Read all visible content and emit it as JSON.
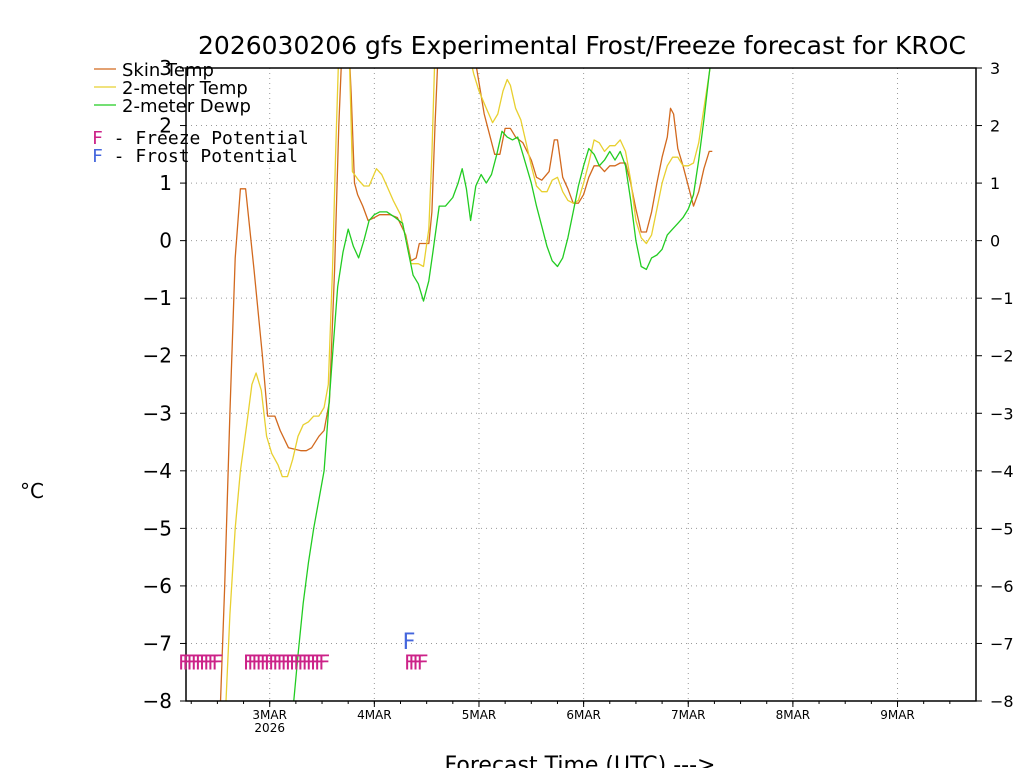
{
  "chart_data": {
    "type": "line",
    "title": "2026030206 gfs Experimental Frost/Freeze forecast for KROC",
    "xlabel": "Forecast Time (UTC) --->",
    "ylabel": "°C",
    "ylim": [
      -8,
      3
    ],
    "yticks": [
      -8,
      -7,
      -6,
      -5,
      -4,
      -3,
      -2,
      -1,
      0,
      1,
      2,
      3
    ],
    "xlim_days": [
      2.2,
      9.75
    ],
    "x_ticks": [
      {
        "day": 3,
        "label": "3MAR",
        "sublabel": "2026"
      },
      {
        "day": 4,
        "label": "4MAR",
        "sublabel": ""
      },
      {
        "day": 5,
        "label": "5MAR",
        "sublabel": ""
      },
      {
        "day": 6,
        "label": "6MAR",
        "sublabel": ""
      },
      {
        "day": 7,
        "label": "7MAR",
        "sublabel": ""
      },
      {
        "day": 8,
        "label": "8MAR",
        "sublabel": ""
      },
      {
        "day": 9,
        "label": "9MAR",
        "sublabel": ""
      }
    ],
    "grid": true,
    "series": [
      {
        "name": "Skin Temp",
        "color": "#d2691e",
        "points": [
          [
            2.52,
            -8.5
          ],
          [
            2.57,
            -6
          ],
          [
            2.62,
            -3
          ],
          [
            2.67,
            -0.3
          ],
          [
            2.72,
            0.9
          ],
          [
            2.77,
            0.9
          ],
          [
            2.85,
            -0.5
          ],
          [
            2.93,
            -2
          ],
          [
            2.98,
            -3.05
          ],
          [
            3.05,
            -3.05
          ],
          [
            3.1,
            -3.3
          ],
          [
            3.18,
            -3.6
          ],
          [
            3.3,
            -3.65
          ],
          [
            3.35,
            -3.65
          ],
          [
            3.4,
            -3.6
          ],
          [
            3.47,
            -3.4
          ],
          [
            3.52,
            -3.3
          ],
          [
            3.57,
            -2.8
          ],
          [
            3.62,
            -0.5
          ],
          [
            3.66,
            2
          ],
          [
            3.69,
            3.3
          ],
          [
            3.76,
            3.3
          ],
          [
            3.78,
            2.5
          ],
          [
            3.81,
            1
          ],
          [
            3.84,
            0.8
          ],
          [
            3.89,
            0.6
          ],
          [
            3.94,
            0.35
          ],
          [
            4.0,
            0.4
          ],
          [
            4.05,
            0.45
          ],
          [
            4.15,
            0.45
          ],
          [
            4.22,
            0.4
          ],
          [
            4.3,
            0.1
          ],
          [
            4.35,
            -0.35
          ],
          [
            4.4,
            -0.3
          ],
          [
            4.43,
            -0.05
          ],
          [
            4.52,
            -0.05
          ],
          [
            4.55,
            0.5
          ],
          [
            4.58,
            2
          ],
          [
            4.61,
            3.3
          ],
          [
            4.95,
            3.3
          ],
          [
            5.05,
            2.2
          ],
          [
            5.15,
            1.5
          ],
          [
            5.2,
            1.5
          ],
          [
            5.25,
            1.95
          ],
          [
            5.3,
            1.95
          ],
          [
            5.35,
            1.8
          ],
          [
            5.42,
            1.7
          ],
          [
            5.5,
            1.4
          ],
          [
            5.55,
            1.1
          ],
          [
            5.6,
            1.05
          ],
          [
            5.67,
            1.2
          ],
          [
            5.72,
            1.75
          ],
          [
            5.75,
            1.75
          ],
          [
            5.8,
            1.1
          ],
          [
            5.85,
            0.9
          ],
          [
            5.9,
            0.65
          ],
          [
            5.95,
            0.65
          ],
          [
            6.0,
            0.8
          ],
          [
            6.05,
            1.1
          ],
          [
            6.1,
            1.3
          ],
          [
            6.15,
            1.3
          ],
          [
            6.2,
            1.2
          ],
          [
            6.25,
            1.3
          ],
          [
            6.3,
            1.3
          ],
          [
            6.35,
            1.35
          ],
          [
            6.4,
            1.35
          ],
          [
            6.45,
            1.0
          ],
          [
            6.5,
            0.55
          ],
          [
            6.55,
            0.15
          ],
          [
            6.6,
            0.15
          ],
          [
            6.65,
            0.5
          ],
          [
            6.7,
            1.0
          ],
          [
            6.75,
            1.45
          ],
          [
            6.8,
            1.8
          ],
          [
            6.83,
            2.3
          ],
          [
            6.86,
            2.2
          ],
          [
            6.9,
            1.6
          ],
          [
            6.95,
            1.3
          ],
          [
            7.0,
            0.95
          ],
          [
            7.05,
            0.6
          ],
          [
            7.1,
            0.85
          ],
          [
            7.15,
            1.25
          ],
          [
            7.2,
            1.55
          ],
          [
            7.23,
            1.55
          ]
        ]
      },
      {
        "name": "2-meter Temp",
        "color": "#e8d030",
        "points": [
          [
            2.57,
            -8.5
          ],
          [
            2.62,
            -6.5
          ],
          [
            2.67,
            -5
          ],
          [
            2.72,
            -4
          ],
          [
            2.78,
            -3.2
          ],
          [
            2.83,
            -2.5
          ],
          [
            2.87,
            -2.3
          ],
          [
            2.92,
            -2.6
          ],
          [
            2.97,
            -3.4
          ],
          [
            3.02,
            -3.7
          ],
          [
            3.08,
            -3.9
          ],
          [
            3.12,
            -4.1
          ],
          [
            3.17,
            -4.1
          ],
          [
            3.22,
            -3.8
          ],
          [
            3.27,
            -3.4
          ],
          [
            3.32,
            -3.2
          ],
          [
            3.37,
            -3.15
          ],
          [
            3.42,
            -3.05
          ],
          [
            3.47,
            -3.05
          ],
          [
            3.52,
            -2.9
          ],
          [
            3.56,
            -2.5
          ],
          [
            3.6,
            -0.5
          ],
          [
            3.63,
            1.5
          ],
          [
            3.66,
            3.3
          ],
          [
            3.76,
            3.3
          ],
          [
            3.79,
            1.2
          ],
          [
            3.85,
            1.05
          ],
          [
            3.9,
            0.95
          ],
          [
            3.95,
            0.95
          ],
          [
            4.02,
            1.25
          ],
          [
            4.07,
            1.15
          ],
          [
            4.12,
            0.95
          ],
          [
            4.18,
            0.7
          ],
          [
            4.25,
            0.45
          ],
          [
            4.3,
            0.05
          ],
          [
            4.35,
            -0.4
          ],
          [
            4.42,
            -0.4
          ],
          [
            4.47,
            -0.45
          ],
          [
            4.52,
            0.2
          ],
          [
            4.55,
            1.5
          ],
          [
            4.58,
            3.3
          ],
          [
            4.9,
            3.3
          ],
          [
            4.95,
            2.9
          ],
          [
            5.0,
            2.6
          ],
          [
            5.07,
            2.3
          ],
          [
            5.13,
            2.05
          ],
          [
            5.18,
            2.2
          ],
          [
            5.23,
            2.6
          ],
          [
            5.27,
            2.8
          ],
          [
            5.3,
            2.7
          ],
          [
            5.35,
            2.3
          ],
          [
            5.4,
            2.1
          ],
          [
            5.45,
            1.7
          ],
          [
            5.5,
            1.3
          ],
          [
            5.55,
            0.95
          ],
          [
            5.6,
            0.85
          ],
          [
            5.65,
            0.85
          ],
          [
            5.7,
            1.05
          ],
          [
            5.75,
            1.1
          ],
          [
            5.8,
            0.85
          ],
          [
            5.85,
            0.7
          ],
          [
            5.9,
            0.65
          ],
          [
            5.95,
            0.7
          ],
          [
            6.0,
            1.0
          ],
          [
            6.05,
            1.35
          ],
          [
            6.1,
            1.75
          ],
          [
            6.15,
            1.7
          ],
          [
            6.2,
            1.55
          ],
          [
            6.25,
            1.65
          ],
          [
            6.3,
            1.65
          ],
          [
            6.35,
            1.75
          ],
          [
            6.4,
            1.55
          ],
          [
            6.45,
            1.05
          ],
          [
            6.5,
            0.35
          ],
          [
            6.55,
            0.05
          ],
          [
            6.6,
            -0.05
          ],
          [
            6.65,
            0.1
          ],
          [
            6.7,
            0.55
          ],
          [
            6.75,
            1.0
          ],
          [
            6.8,
            1.3
          ],
          [
            6.85,
            1.45
          ],
          [
            6.9,
            1.45
          ],
          [
            6.95,
            1.3
          ],
          [
            7.0,
            1.3
          ],
          [
            7.05,
            1.35
          ],
          [
            7.1,
            1.7
          ],
          [
            7.15,
            2.3
          ],
          [
            7.2,
            2.9
          ],
          [
            7.23,
            3.3
          ]
        ]
      },
      {
        "name": "2-meter Dewp",
        "color": "#22cc22",
        "points": [
          [
            3.22,
            -8.2
          ],
          [
            3.27,
            -7.2
          ],
          [
            3.32,
            -6.3
          ],
          [
            3.37,
            -5.6
          ],
          [
            3.42,
            -5.0
          ],
          [
            3.47,
            -4.5
          ],
          [
            3.52,
            -4.0
          ],
          [
            3.56,
            -3.0
          ],
          [
            3.6,
            -2.0
          ],
          [
            3.65,
            -0.8
          ],
          [
            3.7,
            -0.2
          ],
          [
            3.75,
            0.2
          ],
          [
            3.8,
            -0.1
          ],
          [
            3.85,
            -0.3
          ],
          [
            3.9,
            0.0
          ],
          [
            3.95,
            0.35
          ],
          [
            4.0,
            0.45
          ],
          [
            4.05,
            0.5
          ],
          [
            4.12,
            0.5
          ],
          [
            4.2,
            0.4
          ],
          [
            4.27,
            0.3
          ],
          [
            4.32,
            -0.15
          ],
          [
            4.37,
            -0.6
          ],
          [
            4.42,
            -0.75
          ],
          [
            4.47,
            -1.05
          ],
          [
            4.52,
            -0.7
          ],
          [
            4.56,
            -0.2
          ],
          [
            4.62,
            0.6
          ],
          [
            4.68,
            0.6
          ],
          [
            4.75,
            0.75
          ],
          [
            4.8,
            1.0
          ],
          [
            4.84,
            1.25
          ],
          [
            4.88,
            0.9
          ],
          [
            4.92,
            0.35
          ],
          [
            4.97,
            0.95
          ],
          [
            5.02,
            1.15
          ],
          [
            5.07,
            1.0
          ],
          [
            5.12,
            1.15
          ],
          [
            5.17,
            1.5
          ],
          [
            5.22,
            1.9
          ],
          [
            5.27,
            1.8
          ],
          [
            5.32,
            1.75
          ],
          [
            5.37,
            1.8
          ],
          [
            5.42,
            1.5
          ],
          [
            5.5,
            1.0
          ],
          [
            5.55,
            0.6
          ],
          [
            5.6,
            0.25
          ],
          [
            5.65,
            -0.1
          ],
          [
            5.7,
            -0.35
          ],
          [
            5.75,
            -0.45
          ],
          [
            5.8,
            -0.3
          ],
          [
            5.85,
            0.05
          ],
          [
            5.9,
            0.5
          ],
          [
            5.95,
            0.95
          ],
          [
            6.0,
            1.3
          ],
          [
            6.05,
            1.6
          ],
          [
            6.1,
            1.5
          ],
          [
            6.15,
            1.3
          ],
          [
            6.2,
            1.4
          ],
          [
            6.25,
            1.55
          ],
          [
            6.3,
            1.4
          ],
          [
            6.35,
            1.55
          ],
          [
            6.4,
            1.3
          ],
          [
            6.45,
            0.7
          ],
          [
            6.5,
            0.0
          ],
          [
            6.55,
            -0.45
          ],
          [
            6.6,
            -0.5
          ],
          [
            6.65,
            -0.3
          ],
          [
            6.7,
            -0.25
          ],
          [
            6.75,
            -0.15
          ],
          [
            6.8,
            0.1
          ],
          [
            6.85,
            0.2
          ],
          [
            6.9,
            0.3
          ],
          [
            6.95,
            0.4
          ],
          [
            7.0,
            0.55
          ],
          [
            7.05,
            0.8
          ],
          [
            7.1,
            1.4
          ],
          [
            7.15,
            2.1
          ],
          [
            7.2,
            2.9
          ],
          [
            7.23,
            3.3
          ]
        ]
      }
    ],
    "markers": [
      {
        "name": "Freeze Potential",
        "letter": "F",
        "color": "#cc2288",
        "days": [
          2.18,
          2.22,
          2.26,
          2.3,
          2.34,
          2.38,
          2.42,
          2.46,
          2.5,
          2.8,
          2.84,
          2.88,
          2.92,
          2.96,
          3.0,
          3.04,
          3.08,
          3.12,
          3.16,
          3.2,
          3.24,
          3.28,
          3.32,
          3.36,
          3.4,
          3.44,
          3.48,
          3.52,
          4.34,
          4.38,
          4.42,
          4.46
        ]
      },
      {
        "name": "Frost Potential",
        "letter": "F",
        "color": "#4466dd",
        "days": [
          4.33
        ]
      }
    ],
    "legend": {
      "position": "top-left",
      "entries": [
        {
          "label": "Skin Temp",
          "color": "#d2691e"
        },
        {
          "label": "2-meter Temp",
          "color": "#e8d030"
        },
        {
          "label": "2-meter Dewp",
          "color": "#22cc22"
        }
      ],
      "potentials": [
        {
          "letter": "F",
          "color": "#cc2288",
          "label": " - Freeze Potential"
        },
        {
          "letter": "F",
          "color": "#4466dd",
          "label": " - Frost Potential"
        }
      ]
    }
  }
}
